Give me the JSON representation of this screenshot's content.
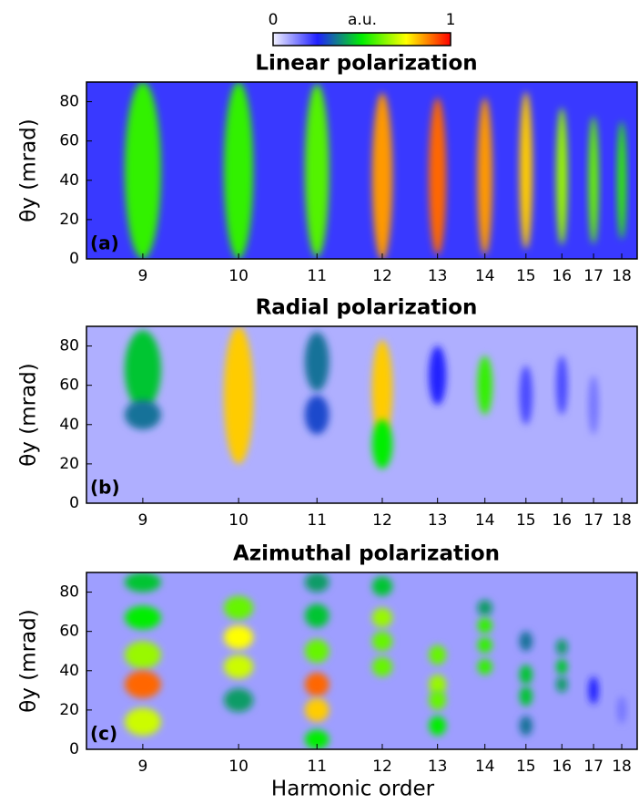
{
  "colorbar": {
    "label": "a.u.",
    "ticks": [
      0,
      1
    ],
    "colormap": [
      "#f2f2ff",
      "#2020ff",
      "#00ee00",
      "#ffff00",
      "#ff0000"
    ]
  },
  "chart_data": [
    {
      "type": "heatmap",
      "title": "Linear polarization",
      "panel_label": "(a)",
      "ylabel": "θy (mrad)",
      "xscale": "reciprocal",
      "xlim": [
        8.5,
        18.6
      ],
      "xticks": [
        9,
        10,
        11,
        12,
        13,
        14,
        15,
        16,
        17,
        18
      ],
      "ylim": [
        0,
        90
      ],
      "yticks": [
        0,
        20,
        40,
        60,
        80
      ],
      "background": 0.22,
      "spots": {
        "x": [
          9,
          10,
          11,
          12,
          13,
          14,
          15,
          16,
          17,
          18
        ],
        "y": [
          45,
          45,
          45,
          42,
          42,
          42,
          45,
          42,
          40,
          40
        ],
        "height": [
          90,
          90,
          88,
          85,
          80,
          80,
          80,
          70,
          65,
          60
        ],
        "intensity": [
          0.55,
          0.55,
          0.58,
          0.85,
          0.9,
          0.85,
          0.8,
          0.65,
          0.6,
          0.55
        ]
      }
    },
    {
      "type": "heatmap",
      "title": "Radial polarization",
      "panel_label": "(b)",
      "ylabel": "θy (mrad)",
      "xscale": "reciprocal",
      "xlim": [
        8.5,
        18.6
      ],
      "xticks": [
        9,
        10,
        11,
        12,
        13,
        14,
        15,
        16,
        17,
        18
      ],
      "ylim": [
        0,
        90
      ],
      "yticks": [
        0,
        20,
        40,
        60,
        80
      ],
      "background": 0.08,
      "spots": {
        "x": [
          9,
          9,
          10,
          11,
          11,
          12,
          12,
          13,
          14,
          15,
          16,
          17
        ],
        "y": [
          68,
          45,
          55,
          72,
          45,
          58,
          30,
          65,
          60,
          55,
          60,
          50
        ],
        "height": [
          40,
          15,
          70,
          30,
          20,
          50,
          25,
          30,
          30,
          30,
          30,
          30
        ],
        "intensity": [
          0.45,
          0.35,
          0.8,
          0.35,
          0.3,
          0.8,
          0.5,
          0.25,
          0.55,
          0.2,
          0.2,
          0.15
        ]
      }
    },
    {
      "type": "heatmap",
      "title": "Azimuthal polarization",
      "panel_label": "(c)",
      "ylabel": "θy (mrad)",
      "xlabel": "Harmonic order",
      "xscale": "reciprocal",
      "xlim": [
        8.5,
        18.6
      ],
      "xticks": [
        9,
        10,
        11,
        12,
        13,
        14,
        15,
        16,
        17,
        18
      ],
      "ylim": [
        0,
        90
      ],
      "yticks": [
        0,
        20,
        40,
        60,
        80
      ],
      "background": 0.1,
      "spots": {
        "x": [
          9,
          9,
          9,
          9,
          9,
          10,
          10,
          10,
          10,
          11,
          11,
          11,
          11,
          11,
          11,
          12,
          12,
          12,
          12,
          13,
          13,
          13,
          13,
          14,
          14,
          14,
          14,
          15,
          15,
          15,
          15,
          16,
          16,
          16,
          17,
          18
        ],
        "y": [
          85,
          67,
          48,
          33,
          14,
          72,
          57,
          42,
          25,
          85,
          68,
          50,
          33,
          20,
          5,
          83,
          67,
          55,
          42,
          48,
          33,
          25,
          12,
          72,
          63,
          53,
          42,
          55,
          38,
          27,
          12,
          52,
          42,
          33,
          30,
          20
        ],
        "height": [
          10,
          12,
          14,
          14,
          14,
          12,
          12,
          12,
          12,
          10,
          12,
          12,
          12,
          12,
          10,
          10,
          10,
          10,
          10,
          10,
          10,
          10,
          10,
          8,
          8,
          8,
          8,
          10,
          10,
          10,
          10,
          8,
          8,
          8,
          14,
          14
        ],
        "intensity": [
          0.45,
          0.5,
          0.65,
          0.9,
          0.7,
          0.6,
          0.75,
          0.7,
          0.4,
          0.4,
          0.45,
          0.6,
          0.9,
          0.8,
          0.5,
          0.45,
          0.65,
          0.6,
          0.6,
          0.6,
          0.65,
          0.6,
          0.5,
          0.4,
          0.55,
          0.55,
          0.55,
          0.35,
          0.45,
          0.45,
          0.35,
          0.4,
          0.45,
          0.4,
          0.25,
          0.15
        ]
      }
    }
  ]
}
